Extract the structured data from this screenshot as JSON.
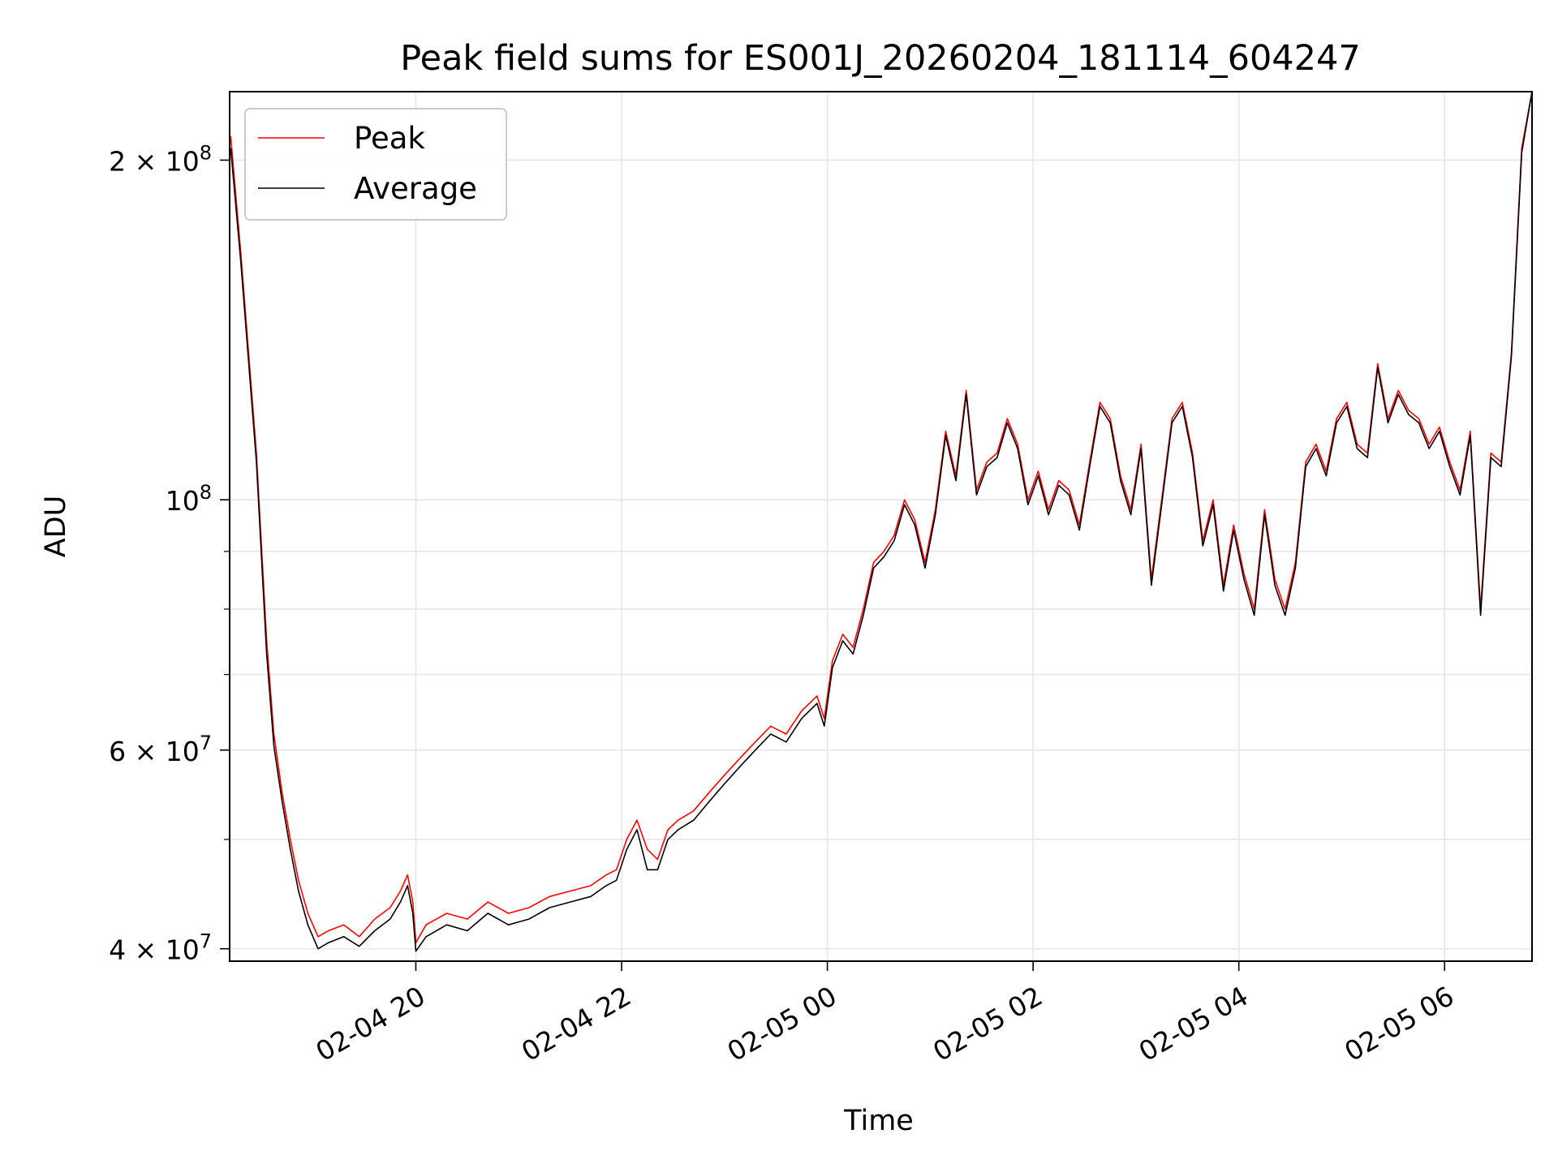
{
  "chart_data": {
    "type": "line",
    "title": "Peak field sums for ES001J_20260204_181114_604247",
    "xlabel": "Time",
    "ylabel": "ADU",
    "yscale": "log",
    "ylim": [
      39000000,
      230000000
    ],
    "xlim_hours": [
      18.19,
      30.85
    ],
    "grid": true,
    "legend_position": "upper-left",
    "x_ticks": [
      {
        "hour": 20,
        "label": "02-04 20"
      },
      {
        "hour": 22,
        "label": "02-04 22"
      },
      {
        "hour": 24,
        "label": "02-05 00"
      },
      {
        "hour": 26,
        "label": "02-05 02"
      },
      {
        "hour": 28,
        "label": "02-05 04"
      },
      {
        "hour": 30,
        "label": "02-05 06"
      }
    ],
    "y_major_ticks": [
      {
        "value": 40000000,
        "mantissa": "4",
        "exponent": "7"
      },
      {
        "value": 60000000,
        "mantissa": "6",
        "exponent": "7"
      },
      {
        "value": 100000000,
        "mantissa": "",
        "exponent": "8"
      },
      {
        "value": 200000000,
        "mantissa": "2",
        "exponent": "8"
      }
    ],
    "y_minor_grid": [
      50000000,
      70000000,
      80000000,
      90000000
    ],
    "times": "hours since 2026-02-04 00:00",
    "series": [
      {
        "name": "Peak",
        "color": "#ff0000",
        "x": [
          18.2,
          18.3,
          18.45,
          18.55,
          18.62,
          18.7,
          18.78,
          18.86,
          18.95,
          19.05,
          19.15,
          19.3,
          19.45,
          19.6,
          19.75,
          19.85,
          19.92,
          19.97,
          20.0,
          20.1,
          20.3,
          20.5,
          20.7,
          20.9,
          21.1,
          21.3,
          21.5,
          21.7,
          21.85,
          21.95,
          22.05,
          22.15,
          22.25,
          22.35,
          22.45,
          22.55,
          22.7,
          22.85,
          23.0,
          23.15,
          23.3,
          23.45,
          23.6,
          23.75,
          23.9,
          23.97,
          24.05,
          24.15,
          24.25,
          24.35,
          24.45,
          24.55,
          24.65,
          24.75,
          24.85,
          24.95,
          25.05,
          25.15,
          25.25,
          25.35,
          25.45,
          25.55,
          25.65,
          25.75,
          25.85,
          25.95,
          26.05,
          26.15,
          26.25,
          26.35,
          26.45,
          26.55,
          26.65,
          26.75,
          26.85,
          26.95,
          27.05,
          27.15,
          27.25,
          27.35,
          27.45,
          27.55,
          27.65,
          27.75,
          27.85,
          27.95,
          28.05,
          28.15,
          28.25,
          28.35,
          28.45,
          28.55,
          28.65,
          28.75,
          28.85,
          28.95,
          29.05,
          29.15,
          29.25,
          29.35,
          29.45,
          29.55,
          29.65,
          29.75,
          29.85,
          29.95,
          30.05,
          30.15,
          30.25,
          30.35,
          30.45,
          30.55,
          30.65,
          30.75,
          30.85
        ],
        "y": [
          210000000,
          165000000,
          110000000,
          75000000,
          62000000,
          55000000,
          50000000,
          46000000,
          43000000,
          41000000,
          41500000,
          42000000,
          41000000,
          42500000,
          43500000,
          45000000,
          46500000,
          44000000,
          40500000,
          42000000,
          43000000,
          42500000,
          44000000,
          43000000,
          43500000,
          44500000,
          45000000,
          45500000,
          46500000,
          47000000,
          50000000,
          52000000,
          49000000,
          48000000,
          51000000,
          52000000,
          53000000,
          55000000,
          57000000,
          59000000,
          61000000,
          63000000,
          62000000,
          65000000,
          67000000,
          64000000,
          72000000,
          76000000,
          74000000,
          80000000,
          88000000,
          90000000,
          93000000,
          100000000,
          96000000,
          88000000,
          98000000,
          115000000,
          105000000,
          125000000,
          102000000,
          108000000,
          110000000,
          118000000,
          112000000,
          100000000,
          106000000,
          98000000,
          104000000,
          102000000,
          95000000,
          108000000,
          122000000,
          118000000,
          105000000,
          98000000,
          112000000,
          85000000,
          100000000,
          118000000,
          122000000,
          110000000,
          92000000,
          100000000,
          84000000,
          95000000,
          86000000,
          80000000,
          98000000,
          85000000,
          80000000,
          88000000,
          108000000,
          112000000,
          106000000,
          118000000,
          122000000,
          112000000,
          110000000,
          132000000,
          118000000,
          125000000,
          120000000,
          118000000,
          112000000,
          116000000,
          108000000,
          102000000,
          115000000,
          80000000,
          110000000,
          108000000,
          135000000,
          205000000,
          230000000
        ]
      },
      {
        "name": "Average",
        "color": "#000000",
        "x": [
          18.2,
          18.3,
          18.45,
          18.55,
          18.62,
          18.7,
          18.78,
          18.86,
          18.95,
          19.05,
          19.15,
          19.3,
          19.45,
          19.6,
          19.75,
          19.85,
          19.92,
          19.97,
          20.0,
          20.1,
          20.3,
          20.5,
          20.7,
          20.9,
          21.1,
          21.3,
          21.5,
          21.7,
          21.85,
          21.95,
          22.05,
          22.15,
          22.25,
          22.35,
          22.45,
          22.55,
          22.7,
          22.85,
          23.0,
          23.15,
          23.3,
          23.45,
          23.6,
          23.75,
          23.9,
          23.97,
          24.05,
          24.15,
          24.25,
          24.35,
          24.45,
          24.55,
          24.65,
          24.75,
          24.85,
          24.95,
          25.05,
          25.15,
          25.25,
          25.35,
          25.45,
          25.55,
          25.65,
          25.75,
          25.85,
          25.95,
          26.05,
          26.15,
          26.25,
          26.35,
          26.45,
          26.55,
          26.65,
          26.75,
          26.85,
          26.95,
          27.05,
          27.15,
          27.25,
          27.35,
          27.45,
          27.55,
          27.65,
          27.75,
          27.85,
          27.95,
          28.05,
          28.15,
          28.25,
          28.35,
          28.45,
          28.55,
          28.65,
          28.75,
          28.85,
          28.95,
          29.05,
          29.15,
          29.25,
          29.35,
          29.45,
          29.55,
          29.65,
          29.75,
          29.85,
          29.95,
          30.05,
          30.15,
          30.25,
          30.35,
          30.45,
          30.55,
          30.65,
          30.75,
          30.85
        ],
        "y": [
          205000000,
          162000000,
          108000000,
          73000000,
          60500000,
          54000000,
          49000000,
          45000000,
          42000000,
          40000000,
          40500000,
          41000000,
          40200000,
          41500000,
          42500000,
          44000000,
          45500000,
          43000000,
          39800000,
          41000000,
          42000000,
          41500000,
          43000000,
          42000000,
          42500000,
          43500000,
          44000000,
          44500000,
          45500000,
          46000000,
          49000000,
          51000000,
          47000000,
          47000000,
          50000000,
          51000000,
          52000000,
          54000000,
          56000000,
          58000000,
          60000000,
          62000000,
          61000000,
          64000000,
          66000000,
          63000000,
          71000000,
          75000000,
          73000000,
          79000000,
          87000000,
          89000000,
          92000000,
          99000000,
          95000000,
          87000000,
          97000000,
          114000000,
          104000000,
          124000000,
          101000000,
          107000000,
          109000000,
          117000000,
          111000000,
          99000000,
          105000000,
          97000000,
          103000000,
          101000000,
          94000000,
          107000000,
          121000000,
          117000000,
          104000000,
          97000000,
          111000000,
          84000000,
          99000000,
          117000000,
          121000000,
          109000000,
          91000000,
          99000000,
          83000000,
          94000000,
          85000000,
          79000000,
          97000000,
          84000000,
          79000000,
          87000000,
          107000000,
          111000000,
          105000000,
          117000000,
          121000000,
          111000000,
          109000000,
          131000000,
          117000000,
          124000000,
          119000000,
          117000000,
          111000000,
          115000000,
          107000000,
          101000000,
          114000000,
          79000000,
          109000000,
          107000000,
          134000000,
          203000000,
          230000000
        ]
      }
    ]
  }
}
